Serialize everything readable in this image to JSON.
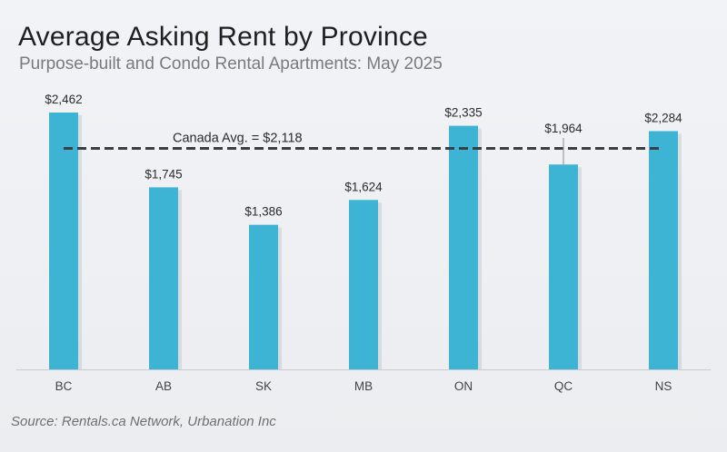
{
  "chart_data": {
    "type": "bar",
    "title": "Average Asking Rent by Province",
    "subtitle": "Purpose-built and Condo Rental Apartments: May 2025",
    "categories": [
      "BC",
      "AB",
      "SK",
      "MB",
      "ON",
      "QC",
      "NS"
    ],
    "values": [
      2462,
      1745,
      1386,
      1624,
      2335,
      1964,
      2284
    ],
    "value_labels": [
      "$2,462",
      "$1,745",
      "$1,386",
      "$1,624",
      "$2,335",
      "$1,964",
      "$2,284"
    ],
    "reference_line": {
      "label": "Canada Avg. = $2,118",
      "value": 2118
    },
    "ylim": [
      0,
      2462
    ],
    "grid": false,
    "source": "Source: Rentals.ca Network, Urbanation Inc",
    "colors": {
      "bar": "#3eb4d4",
      "avg_line": "#3a3f45"
    }
  }
}
